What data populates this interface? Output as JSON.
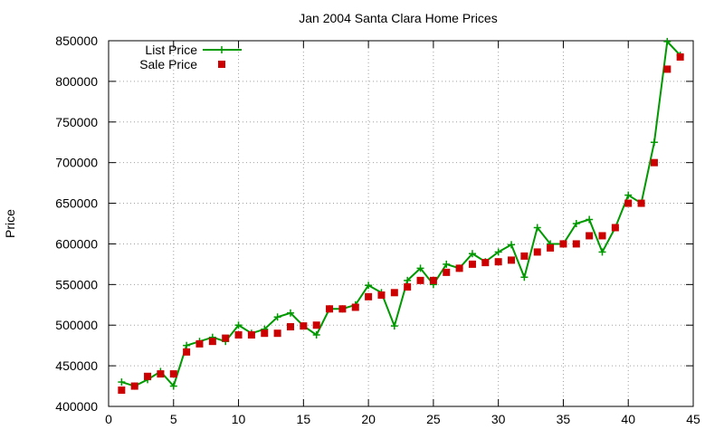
{
  "chart_data": {
    "type": "line",
    "title": "Jan 2004 Santa Clara Home Prices",
    "xlabel": "",
    "ylabel": "Price",
    "xlim": [
      0,
      45
    ],
    "ylim": [
      400000,
      850000
    ],
    "x_ticks": [
      0,
      5,
      10,
      15,
      20,
      25,
      30,
      35,
      40,
      45
    ],
    "y_ticks": [
      400000,
      450000,
      500000,
      550000,
      600000,
      650000,
      700000,
      750000,
      800000,
      850000
    ],
    "grid": true,
    "legend_position": "top-left",
    "x": [
      1,
      2,
      3,
      4,
      5,
      6,
      7,
      8,
      9,
      10,
      11,
      12,
      13,
      14,
      15,
      16,
      17,
      18,
      19,
      20,
      21,
      22,
      23,
      24,
      25,
      26,
      27,
      28,
      29,
      30,
      31,
      32,
      33,
      34,
      35,
      36,
      37,
      38,
      39,
      40,
      41,
      42,
      43,
      44
    ],
    "series": [
      {
        "name": "List Price",
        "style": "linespoints",
        "color": "#009900",
        "values": [
          430000,
          425000,
          433000,
          443000,
          425000,
          475000,
          480000,
          485000,
          480000,
          500000,
          490000,
          495000,
          510000,
          515000,
          499000,
          488000,
          520000,
          520000,
          525000,
          549000,
          540000,
          499000,
          555000,
          570000,
          550000,
          575000,
          570000,
          588000,
          578000,
          590000,
          599000,
          559000,
          620000,
          600000,
          600000,
          625000,
          630000,
          590000,
          620000,
          660000,
          650000,
          725000,
          849000,
          832000
        ]
      },
      {
        "name": "Sale Price",
        "style": "points",
        "color": "#cc0000",
        "values": [
          420000,
          425000,
          437000,
          440000,
          440000,
          467000,
          477000,
          480000,
          484000,
          488000,
          488000,
          490000,
          490000,
          498000,
          499000,
          500000,
          520000,
          520000,
          522000,
          535000,
          537000,
          540000,
          547000,
          555000,
          555000,
          565000,
          570000,
          575000,
          577000,
          578000,
          580000,
          585000,
          590000,
          595000,
          600000,
          600000,
          610000,
          610000,
          620000,
          650000,
          650000,
          700000,
          815000,
          830000
        ]
      }
    ]
  }
}
